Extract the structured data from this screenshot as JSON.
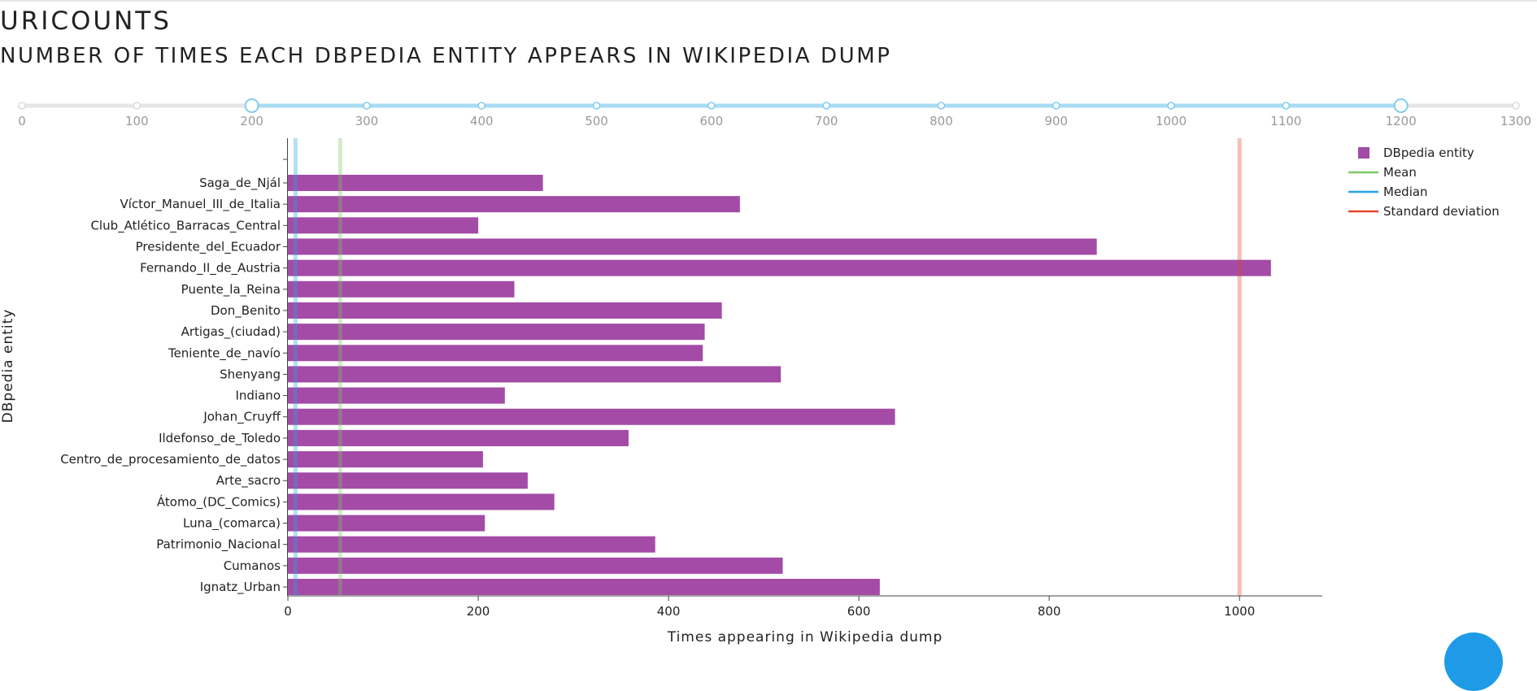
{
  "header": {
    "title": "URICOUNTS",
    "subtitle": "NUMBER OF TIMES EACH DBPEDIA ENTITY APPEARS IN WIKIPEDIA DUMP"
  },
  "range_slider": {
    "ticks": [
      0,
      100,
      200,
      300,
      400,
      500,
      600,
      700,
      800,
      900,
      1000,
      1100,
      1200,
      1300
    ],
    "selected_range": [
      200,
      1200
    ],
    "track_color": "#e6e6e6",
    "active_color": "#a8dcf3"
  },
  "chart_data": {
    "type": "bar",
    "orientation": "horizontal",
    "xlabel": "Times appearing in Wikipedia dump",
    "ylabel": "DBpedia entity",
    "xlim": [
      0,
      1087
    ],
    "xticks": [
      0,
      200,
      400,
      600,
      800,
      1000
    ],
    "categories": [
      "Saga_de_Njál",
      "Víctor_Manuel_III_de_Italia",
      "Club_Atlético_Barracas_Central",
      "Presidente_del_Ecuador",
      "Fernando_II_de_Austria",
      "Puente_la_Reina",
      "Don_Benito",
      "Artigas_(ciudad)",
      "Teniente_de_navío",
      "Shenyang",
      "Indiano",
      "Johan_Cruyff",
      "Ildefonso_de_Toledo",
      "Centro_de_procesamiento_de_datos",
      "Arte_sacro",
      "Átomo_(DC_Comics)",
      "Luna_(comarca)",
      "Patrimonio_Nacional",
      "Cumanos",
      "Ignatz_Urban"
    ],
    "series": [
      {
        "name": "DBpedia entity",
        "color": "#a34ba6",
        "values": [
          268,
          475,
          200,
          850,
          1033,
          238,
          456,
          438,
          436,
          518,
          228,
          638,
          358,
          205,
          252,
          280,
          207,
          386,
          520,
          622
        ]
      }
    ],
    "reference_lines": [
      {
        "name": "Mean",
        "value": 55,
        "color": "#7ec764"
      },
      {
        "name": "Median",
        "value": 8,
        "color": "#29a3e6"
      },
      {
        "name": "Standard deviation",
        "value": 1000,
        "color": "#e8452c"
      }
    ],
    "legend_placement": "top-right",
    "grid": false
  }
}
